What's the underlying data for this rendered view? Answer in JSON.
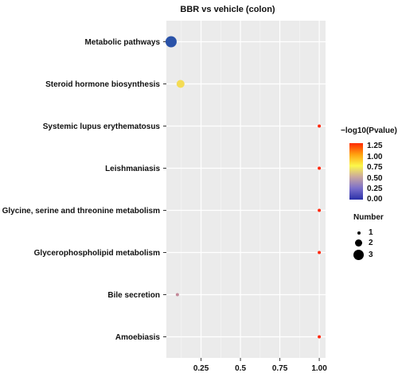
{
  "title": "BBR vs  vehicle (colon)",
  "legend": {
    "color_title": "−log10(Pvalue)",
    "color_ticks": [
      "1.25",
      "1.00",
      "0.75",
      "0.50",
      "0.25",
      "0.00"
    ],
    "color_stops": [
      "#ff2a00",
      "#ffa210",
      "#fcf84a",
      "#c9a7a0",
      "#7b6fcb",
      "#2a30a8"
    ],
    "size_title": "Number",
    "size_ticks": [
      "1",
      "2",
      "3"
    ]
  },
  "chart_data": {
    "type": "scatter",
    "title": "BBR vs  vehicle (colon)",
    "xlabel": "",
    "ylabel": "",
    "xlim": [
      0.03,
      1.04
    ],
    "x_ticks": [
      "0.25",
      "0.5",
      "0.75",
      "1.00"
    ],
    "x_tick_values": [
      0.25,
      0.5,
      0.75,
      1.0
    ],
    "grid": true,
    "legend_position": "right",
    "categories": [
      "Metabolic pathways",
      "Steroid hormone biosynthesis",
      "Systemic lupus erythematosus",
      "Leishmaniasis",
      "Glycine, serine and threonine metabolism",
      "Glycerophospholipid metabolism",
      "Bile secretion",
      "Amoebiasis"
    ],
    "points": [
      {
        "category": "Metabolic pathways",
        "x": 0.06,
        "number": 3,
        "neglog10p": 0.0,
        "color": "#2a52a8"
      },
      {
        "category": "Steroid hormone biosynthesis",
        "x": 0.12,
        "number": 2,
        "neglog10p": 0.55,
        "color": "#f4dc55"
      },
      {
        "category": "Systemic lupus erythematosus",
        "x": 1.0,
        "number": 1,
        "neglog10p": 1.3,
        "color": "#ff2a10"
      },
      {
        "category": "Leishmaniasis",
        "x": 1.0,
        "number": 1,
        "neglog10p": 1.3,
        "color": "#ff2a10"
      },
      {
        "category": "Glycine, serine and threonine metabolism",
        "x": 1.0,
        "number": 1,
        "neglog10p": 1.3,
        "color": "#ff2a10"
      },
      {
        "category": "Glycerophospholipid metabolism",
        "x": 1.0,
        "number": 1,
        "neglog10p": 1.3,
        "color": "#ff2a10"
      },
      {
        "category": "Bile secretion",
        "x": 0.1,
        "number": 1,
        "neglog10p": 0.35,
        "color": "#c48a9a"
      },
      {
        "category": "Amoebiasis",
        "x": 1.0,
        "number": 1,
        "neglog10p": 1.3,
        "color": "#ff2a10"
      }
    ]
  }
}
